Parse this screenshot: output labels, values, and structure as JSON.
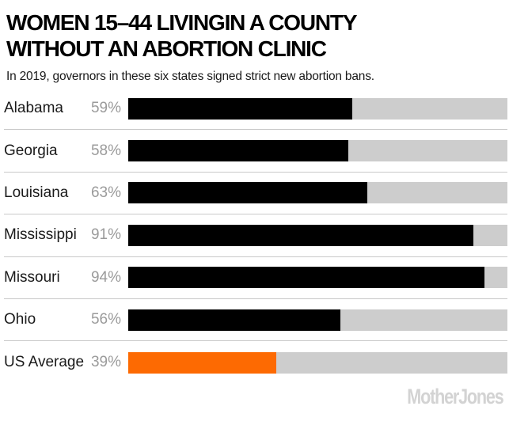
{
  "header": {
    "title_line1": "WOMEN 15–44 LIVINGIN A COUNTY",
    "title_line2": "WITHOUT AN ABORTION CLINIC",
    "subtitle": "In 2019, governors in these six states signed strict new abortion bans."
  },
  "chart_data": {
    "type": "bar",
    "orientation": "horizontal",
    "title": "WOMEN 15–44 LIVINGIN A COUNTY WITHOUT AN ABORTION CLINIC",
    "subtitle": "In 2019, governors in these six states signed strict new abortion bans.",
    "categories": [
      "Alabama",
      "Georgia",
      "Louisiana",
      "Mississippi",
      "Missouri",
      "Ohio",
      "US Average"
    ],
    "values": [
      59,
      58,
      63,
      91,
      94,
      56,
      39
    ],
    "value_labels": [
      "59%",
      "58%",
      "63%",
      "91%",
      "94%",
      "56%",
      "39%"
    ],
    "xlim": [
      0,
      100
    ],
    "unit": "%",
    "grid": false,
    "legend": false,
    "bar_colors": [
      "#000000",
      "#000000",
      "#000000",
      "#000000",
      "#000000",
      "#000000",
      "#fd6a02"
    ],
    "track_color": "#cdcdcd",
    "highlighted_category": "US Average"
  },
  "colors": {
    "accent_orange": "#fd6a02",
    "bar_black": "#000000",
    "track_gray": "#cdcdcd",
    "divider_gray": "#c9c9c9",
    "value_label_gray": "#9b9b9b",
    "brand_gray": "#d3d3d3",
    "background": "#ffffff"
  },
  "footer": {
    "brand": "MotherJones"
  }
}
